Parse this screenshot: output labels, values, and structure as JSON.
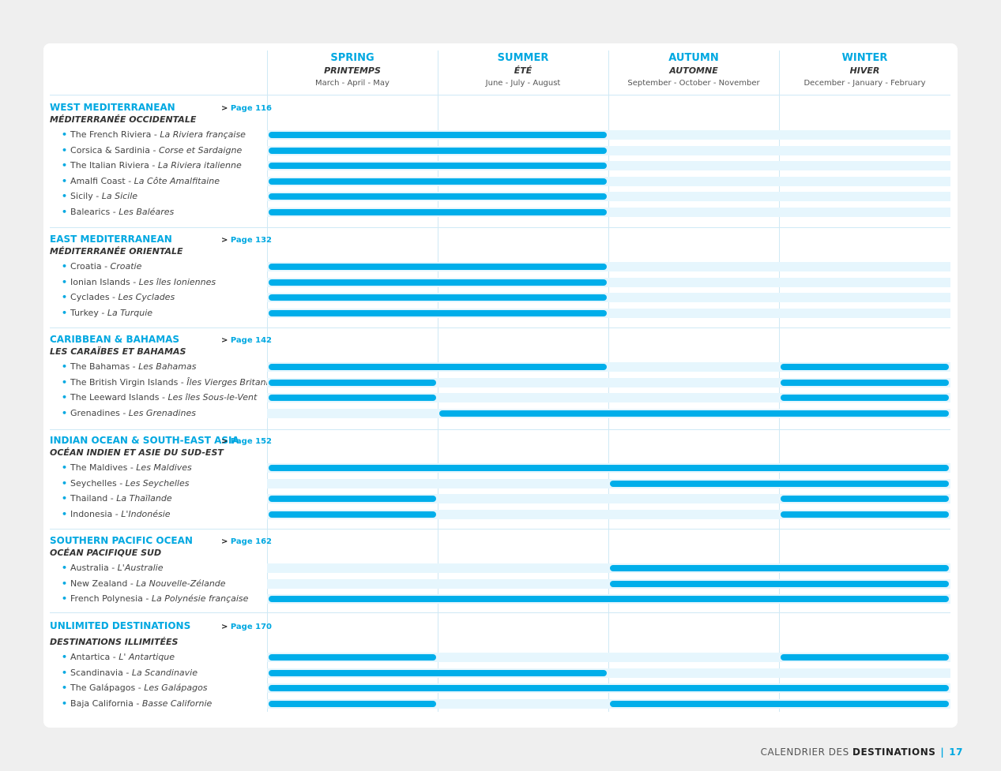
{
  "seasons": [
    {
      "en": "SPRING",
      "fr": "PRINTEMPS",
      "months": "March - April - May"
    },
    {
      "en": "SUMMER",
      "fr": "ÉTÉ",
      "months": "June - July - August"
    },
    {
      "en": "AUTUMN",
      "fr": "AUTOMNE",
      "months": "September - October - November"
    },
    {
      "en": "WINTER",
      "fr": "HIVER",
      "months": "December - January - February"
    }
  ],
  "regions": [
    {
      "en": "WEST MEDITERRANEAN",
      "fr": "MÉDITERRANÉE OCCIDENTALE",
      "page": "Page 116",
      "destinations": [
        {
          "en": "The French Riviera",
          "fr": "La Riviera française",
          "seasons": [
            "spring",
            "summer"
          ]
        },
        {
          "en": "Corsica & Sardinia",
          "fr": "Corse et Sardaigne",
          "seasons": [
            "spring",
            "summer"
          ]
        },
        {
          "en": "The Italian Riviera",
          "fr": "La Riviera italienne",
          "seasons": [
            "spring",
            "summer"
          ]
        },
        {
          "en": "Amalfi Coast",
          "fr": "La Côte Amalfitaine",
          "seasons": [
            "spring",
            "summer"
          ]
        },
        {
          "en": "Sicily",
          "fr": "La Sicile",
          "seasons": [
            "spring",
            "summer"
          ]
        },
        {
          "en": "Balearics",
          "fr": "Les Baléares",
          "seasons": [
            "spring",
            "summer"
          ]
        }
      ]
    },
    {
      "en": "EAST MEDITERRANEAN",
      "fr": "MÉDITERRANÉE ORIENTALE",
      "page": "Page 132",
      "destinations": [
        {
          "en": "Croatia",
          "fr": "Croatie",
          "seasons": [
            "spring",
            "summer"
          ]
        },
        {
          "en": "Ionian Islands",
          "fr": "Les îles Ioniennes",
          "seasons": [
            "spring",
            "summer"
          ]
        },
        {
          "en": "Cyclades",
          "fr": "Les Cyclades",
          "seasons": [
            "spring",
            "summer"
          ]
        },
        {
          "en": "Turkey",
          "fr": "La Turquie",
          "seasons": [
            "spring",
            "summer"
          ]
        }
      ]
    },
    {
      "en": "CARIBBEAN & BAHAMAS",
      "fr": "LES CARAÏBES ET BAHAMAS",
      "page": "Page 142",
      "destinations": [
        {
          "en": "The Bahamas",
          "fr": "Les Bahamas",
          "seasons": [
            "spring",
            "summer",
            "winter"
          ]
        },
        {
          "en": "The British Virgin Islands",
          "fr": "Îles Vierges Britanniques",
          "seasons": [
            "spring",
            "winter"
          ]
        },
        {
          "en": "The Leeward Islands",
          "fr": "Les îles Sous-le-Vent",
          "seasons": [
            "spring",
            "winter"
          ]
        },
        {
          "en": "Grenadines",
          "fr": "Les Grenadines",
          "seasons": [
            "summer",
            "autumn",
            "winter"
          ]
        }
      ]
    },
    {
      "en": "INDIAN OCEAN & SOUTH-EAST ASIA",
      "fr": "OCÉAN INDIEN ET ASIE DU SUD-EST",
      "page": "Page 152",
      "destinations": [
        {
          "en": "The Maldives",
          "fr": "Les Maldives",
          "seasons": [
            "spring",
            "summer",
            "autumn",
            "winter"
          ]
        },
        {
          "en": "Seychelles",
          "fr": "Les Seychelles",
          "seasons": [
            "autumn",
            "winter"
          ]
        },
        {
          "en": "Thailand",
          "fr": "La Thaïlande",
          "seasons": [
            "spring",
            "winter"
          ]
        },
        {
          "en": "Indonesia",
          "fr": "L'Indonésie",
          "seasons": [
            "spring",
            "winter"
          ]
        }
      ]
    },
    {
      "en": "SOUTHERN PACIFIC OCEAN",
      "fr": "OCÉAN PACIFIQUE SUD",
      "page": "Page 162",
      "destinations": [
        {
          "en": "Australia",
          "fr": "L'Australie",
          "seasons": [
            "autumn",
            "winter"
          ]
        },
        {
          "en": "New Zealand",
          "fr": "La Nouvelle-Zélande",
          "seasons": [
            "autumn",
            "winter"
          ]
        },
        {
          "en": "French Polynesia",
          "fr": "La Polynésie française",
          "seasons": [
            "spring",
            "summer",
            "autumn",
            "winter"
          ]
        }
      ]
    },
    {
      "en": "UNLIMITED DESTINATIONS",
      "fr": "DESTINATIONS ILLIMITÉES",
      "page": "Page 170",
      "destinations": [
        {
          "en": "Antartica",
          "fr": "L' Antartique",
          "seasons": [
            "spring",
            "winter"
          ]
        },
        {
          "en": "Scandinavia",
          "fr": "La Scandinavie",
          "seasons": [
            "spring",
            "summer"
          ]
        },
        {
          "en": "The Galápagos",
          "fr": "Les Galápagos",
          "seasons": [
            "spring",
            "summer",
            "autumn",
            "winter"
          ]
        },
        {
          "en": "Baja California",
          "fr": "Basse Californie",
          "seasons": [
            "spring",
            "autumn",
            "winter"
          ]
        }
      ]
    }
  ],
  "footer": {
    "label": "CALENDRIER DES",
    "label_bold": "DESTINATIONS",
    "separator": "|",
    "page": "17"
  },
  "colors": {
    "accent": "#00aeea",
    "track": "#e6f6fd",
    "grid": "#cfe9f5"
  }
}
